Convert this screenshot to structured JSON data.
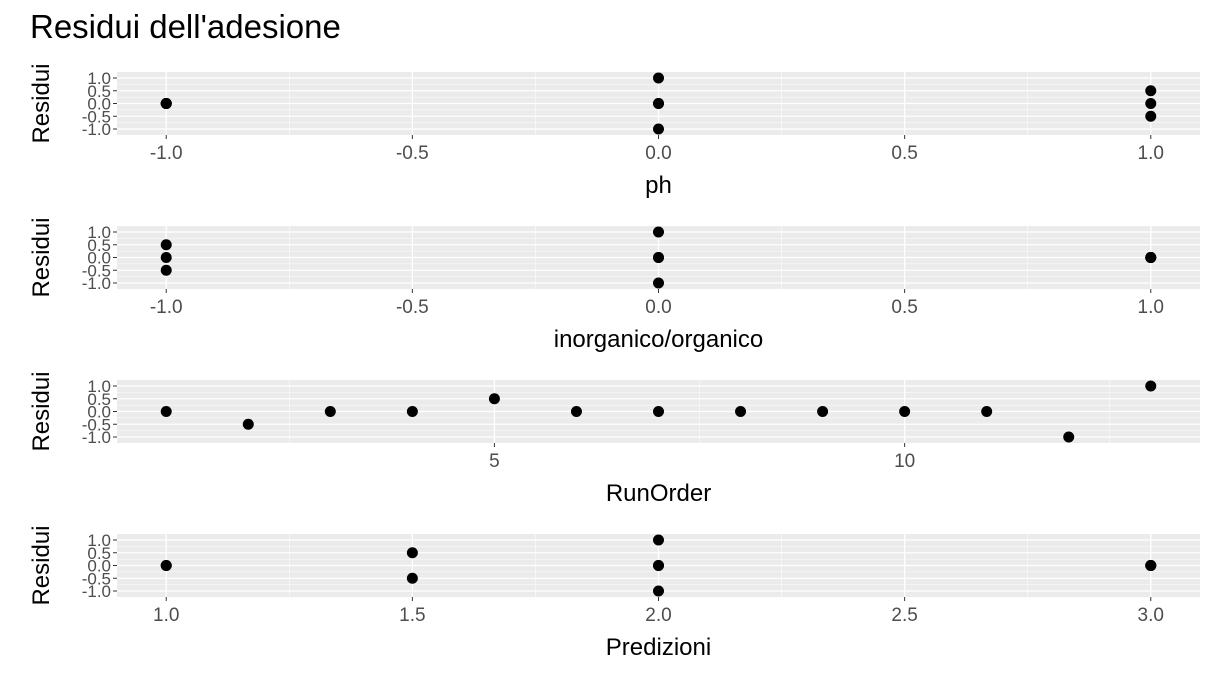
{
  "title": "Residui dell'adesione",
  "chart_data": [
    {
      "type": "scatter",
      "xlabel": "ph",
      "ylabel": "Residui",
      "xlim": [
        -1.1,
        1.1
      ],
      "ylim": [
        -1.0,
        1.0
      ],
      "xticks": [
        -1.0,
        -0.5,
        0.0,
        0.5,
        1.0
      ],
      "xtick_labels": [
        "-1.0",
        "-0.5",
        "0.0",
        "0.5",
        "1.0"
      ],
      "yticks": [
        -1.0,
        -0.5,
        0.0,
        0.5,
        1.0
      ],
      "ytick_labels": [
        "-1.0",
        "-0.5",
        "0.0",
        "0.5",
        "1.0"
      ],
      "grid": true,
      "points": [
        {
          "x": -1,
          "y": 0
        },
        {
          "x": -1,
          "y": 0
        },
        {
          "x": -1,
          "y": 0
        },
        {
          "x": -1,
          "y": 0
        },
        {
          "x": 0,
          "y": 1
        },
        {
          "x": 0,
          "y": 0
        },
        {
          "x": 0,
          "y": 0
        },
        {
          "x": 0,
          "y": -1
        },
        {
          "x": 1,
          "y": 0.5
        },
        {
          "x": 1,
          "y": 0
        },
        {
          "x": 1,
          "y": -0.5
        }
      ]
    },
    {
      "type": "scatter",
      "xlabel": "inorganico/organico",
      "ylabel": "Residui",
      "xlim": [
        -1.1,
        1.1
      ],
      "ylim": [
        -1.0,
        1.0
      ],
      "xticks": [
        -1.0,
        -0.5,
        0.0,
        0.5,
        1.0
      ],
      "xtick_labels": [
        "-1.0",
        "-0.5",
        "0.0",
        "0.5",
        "1.0"
      ],
      "yticks": [
        -1.0,
        -0.5,
        0.0,
        0.5,
        1.0
      ],
      "ytick_labels": [
        "-1.0",
        "-0.5",
        "0.0",
        "0.5",
        "1.0"
      ],
      "grid": true,
      "points": [
        {
          "x": -1,
          "y": 0.5
        },
        {
          "x": -1,
          "y": 0
        },
        {
          "x": -1,
          "y": -0.5
        },
        {
          "x": 0,
          "y": 1
        },
        {
          "x": 0,
          "y": 0
        },
        {
          "x": 0,
          "y": 0
        },
        {
          "x": 0,
          "y": -1
        },
        {
          "x": 1,
          "y": 0
        },
        {
          "x": 1,
          "y": 0
        },
        {
          "x": 1,
          "y": 0
        },
        {
          "x": 1,
          "y": 0
        }
      ]
    },
    {
      "type": "scatter",
      "xlabel": "RunOrder",
      "ylabel": "Residui",
      "xlim": [
        0.4,
        13.6
      ],
      "ylim": [
        -1.0,
        1.0
      ],
      "xticks": [
        5,
        10
      ],
      "xtick_labels": [
        "5",
        "10"
      ],
      "x_minor_ticks": [
        2.5,
        7.5,
        12.5
      ],
      "yticks": [
        -1.0,
        -0.5,
        0.0,
        0.5,
        1.0
      ],
      "ytick_labels": [
        "-1.0",
        "-0.5",
        "0.0",
        "0.5",
        "1.0"
      ],
      "grid": true,
      "points": [
        {
          "x": 1,
          "y": 0
        },
        {
          "x": 2,
          "y": -0.5
        },
        {
          "x": 3,
          "y": 0
        },
        {
          "x": 4,
          "y": 0
        },
        {
          "x": 5,
          "y": 0.5
        },
        {
          "x": 6,
          "y": 0
        },
        {
          "x": 7,
          "y": 0
        },
        {
          "x": 8,
          "y": 0
        },
        {
          "x": 9,
          "y": 0
        },
        {
          "x": 10,
          "y": 0
        },
        {
          "x": 11,
          "y": 0
        },
        {
          "x": 12,
          "y": -1
        },
        {
          "x": 13,
          "y": 1
        }
      ]
    },
    {
      "type": "scatter",
      "xlabel": "Predizioni",
      "ylabel": "Residui",
      "xlim": [
        0.9,
        3.1
      ],
      "ylim": [
        -1.0,
        1.0
      ],
      "xticks": [
        1.0,
        1.5,
        2.0,
        2.5,
        3.0
      ],
      "xtick_labels": [
        "1.0",
        "1.5",
        "2.0",
        "2.5",
        "3.0"
      ],
      "yticks": [
        -1.0,
        -0.5,
        0.0,
        0.5,
        1.0
      ],
      "ytick_labels": [
        "-1.0",
        "-0.5",
        "0.0",
        "0.5",
        "1.0"
      ],
      "grid": true,
      "points": [
        {
          "x": 1,
          "y": 0
        },
        {
          "x": 1,
          "y": 0
        },
        {
          "x": 1.5,
          "y": 0.5
        },
        {
          "x": 1.5,
          "y": -0.5
        },
        {
          "x": 2,
          "y": 1
        },
        {
          "x": 2,
          "y": 0
        },
        {
          "x": 2,
          "y": 0
        },
        {
          "x": 2,
          "y": -1
        },
        {
          "x": 3,
          "y": 0
        },
        {
          "x": 3,
          "y": 0
        },
        {
          "x": 3,
          "y": 0
        }
      ]
    }
  ],
  "colors": {
    "panel_background": "#ebebeb",
    "grid_major": "#ffffff",
    "point": "#000000",
    "tick_label": "#4d4d4d",
    "axis_title": "#000000"
  }
}
